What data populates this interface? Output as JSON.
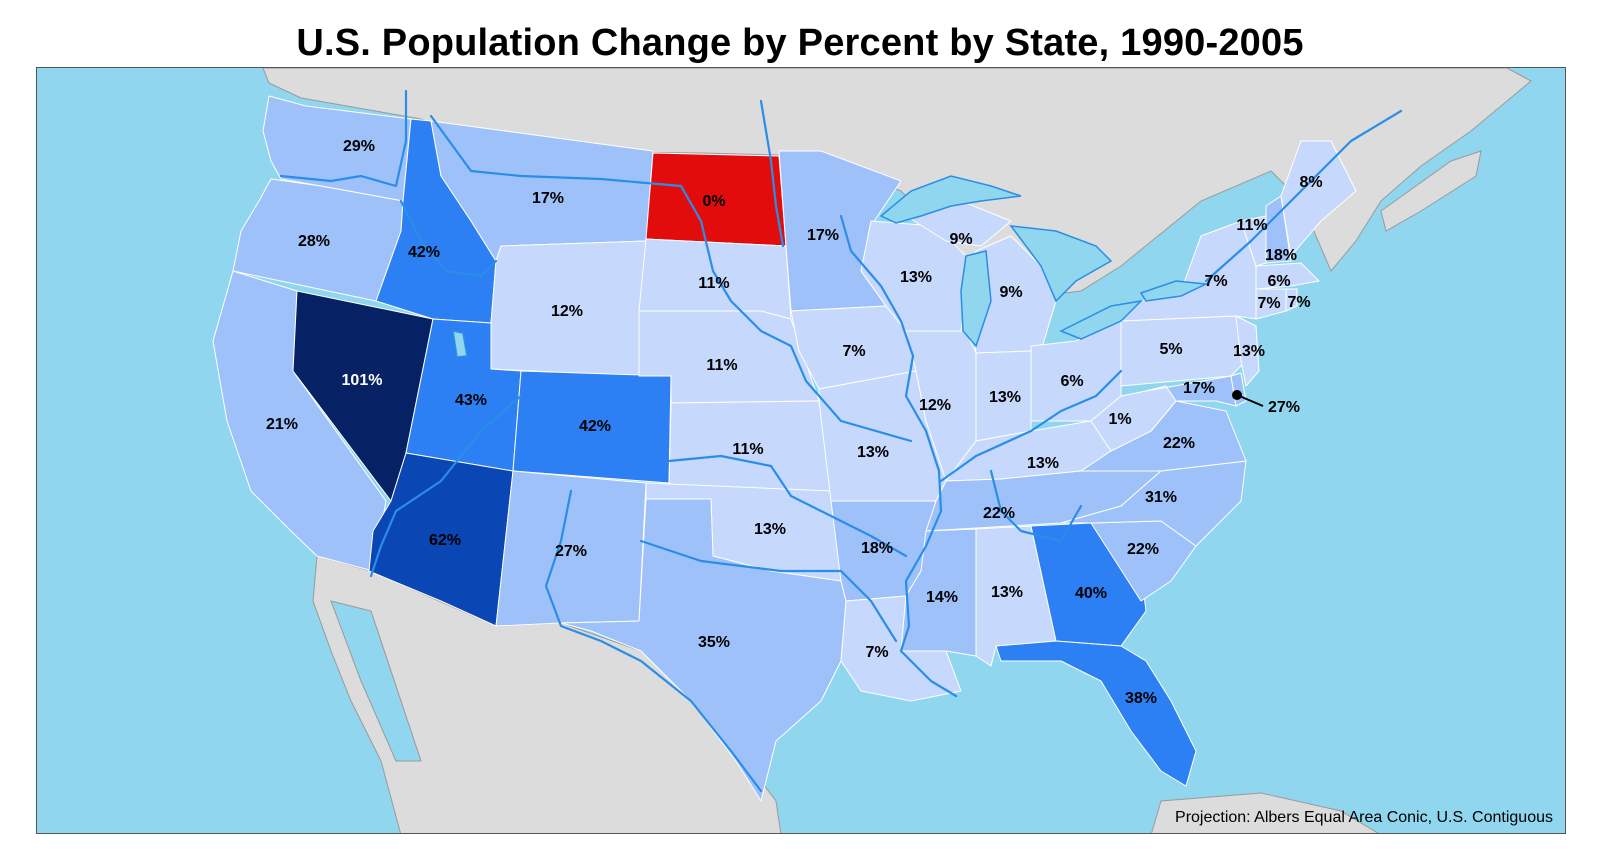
{
  "title": "U.S. Population Change by Percent by State, 1990-2005",
  "credit": "Projection: Albers Equal Area Conic, U.S. Contiguous",
  "colors": {
    "ocean": "#8fd6ee",
    "other_land": "#dcdcdc",
    "decline": "#e30c0c",
    "c1": "#c6d8fb",
    "c2": "#9fc1fa",
    "c3": "#2d7ff4",
    "c4": "#0a46b4",
    "c5": "#062264"
  },
  "states": {
    "WA": "29%",
    "OR": "28%",
    "CA": "21%",
    "NV": "101%",
    "ID": "42%",
    "MT": "17%",
    "WY": "12%",
    "UT": "43%",
    "CO": "42%",
    "AZ": "62%",
    "NM": "27%",
    "ND": "0%",
    "SD": "11%",
    "NE": "11%",
    "KS": "11%",
    "OK": "13%",
    "TX": "35%",
    "MN": "17%",
    "IA": "7%",
    "MO": "13%",
    "AR": "18%",
    "LA": "7%",
    "WI": "13%",
    "MI_UP": "9%",
    "MI": "9%",
    "IL": "12%",
    "IN": "13%",
    "OH": "6%",
    "KY": "13%",
    "TN": "22%",
    "MS": "14%",
    "AL": "13%",
    "GA": "40%",
    "FL": "38%",
    "SC": "22%",
    "NC": "31%",
    "VA": "22%",
    "WV": "1%",
    "PA": "5%",
    "NY": "7%",
    "VT": "11%",
    "NH": "18%",
    "ME": "8%",
    "MA": "6%",
    "CT": "7%",
    "RI": "7%",
    "NJ": "13%",
    "MD": "17%",
    "DE": "27%"
  }
}
